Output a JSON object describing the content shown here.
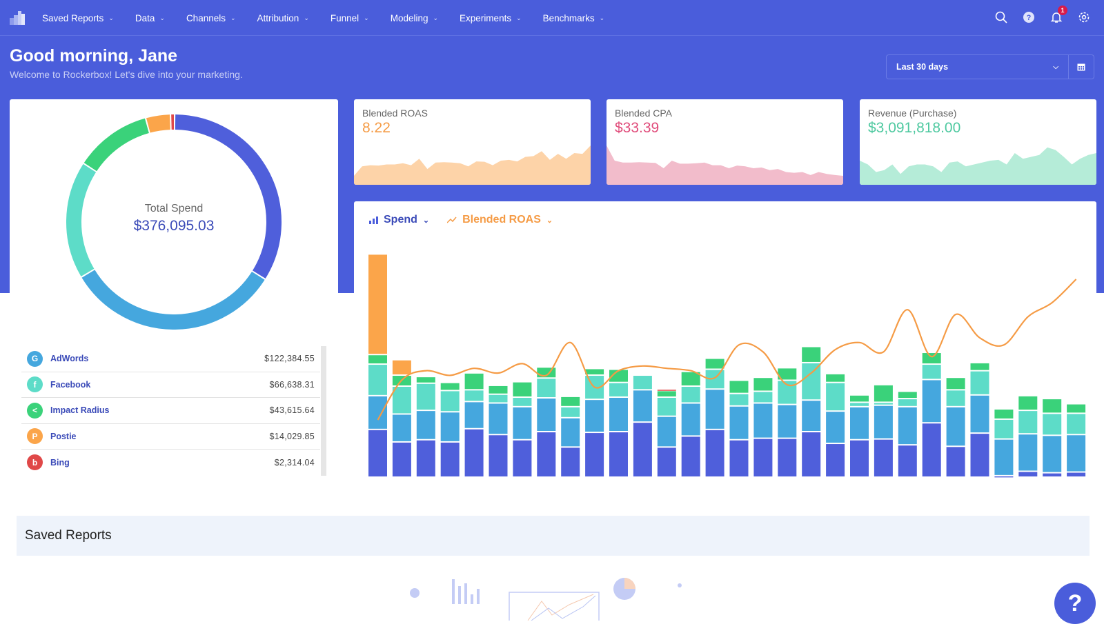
{
  "nav": {
    "items": [
      "Saved Reports",
      "Data",
      "Channels",
      "Attribution",
      "Funnel",
      "Modeling",
      "Experiments",
      "Benchmarks"
    ],
    "notification_count": "1",
    "icons": [
      "search-icon",
      "help-icon",
      "bell-icon",
      "gear-icon"
    ]
  },
  "header": {
    "greeting": "Good morning, Jane",
    "subtitle": "Welcome to Rockerbox! Let's dive into your marketing.",
    "date_range": "Last 30 days"
  },
  "donut": {
    "label": "Total Spend",
    "total": "$376,095.03",
    "slices": [
      {
        "value": 127112.64,
        "color": "#4f5fdb"
      },
      {
        "value": 122384.55,
        "color": "#45a7de"
      },
      {
        "value": 66638.31,
        "color": "#5ddcc8"
      },
      {
        "value": 43615.64,
        "color": "#3ad27a"
      },
      {
        "value": 14029.85,
        "color": "#fba54a"
      },
      {
        "value": 2314.04,
        "color": "#e04848"
      }
    ]
  },
  "channels": [
    {
      "name": "AdWords",
      "spend": "$122,384.55",
      "color": "#45a7de",
      "icon": "G"
    },
    {
      "name": "Facebook",
      "spend": "$66,638.31",
      "color": "#5ddcc8",
      "icon": "f"
    },
    {
      "name": "Impact Radius",
      "spend": "$43,615.64",
      "color": "#3ad27a",
      "icon": "<"
    },
    {
      "name": "Postie",
      "spend": "$14,029.85",
      "color": "#fba54a",
      "icon": "P"
    },
    {
      "name": "Bing",
      "spend": "$2,314.04",
      "color": "#e04848",
      "icon": "b"
    }
  ],
  "kpis": [
    {
      "label": "Blended ROAS",
      "value": "8.22",
      "color": "#f59b45",
      "fill": "#fdd3a8",
      "trend": [
        20,
        45,
        48,
        47,
        50,
        50,
        53,
        48,
        65,
        38,
        55,
        56,
        55,
        53,
        45,
        58,
        57,
        48,
        60,
        62,
        58,
        70,
        72,
        85,
        62,
        78,
        65,
        80,
        78,
        100
      ]
    },
    {
      "label": "Blended CPA",
      "value": "$33.39",
      "color": "#e04b7a",
      "fill": "#f2bccb",
      "trend": [
        100,
        60,
        55,
        55,
        56,
        55,
        54,
        40,
        60,
        52,
        52,
        53,
        55,
        48,
        48,
        40,
        47,
        45,
        40,
        42,
        35,
        38,
        30,
        28,
        30,
        22,
        30,
        25,
        22,
        20
      ]
    },
    {
      "label": "Revenue (Purchase)",
      "value": "$3,091,818.00",
      "color": "#4ec9a0",
      "fill": "#b5ecd8",
      "trend": [
        60,
        50,
        30,
        35,
        50,
        25,
        45,
        50,
        50,
        45,
        30,
        55,
        58,
        45,
        50,
        55,
        60,
        62,
        50,
        80,
        65,
        70,
        75,
        95,
        88,
        70,
        50,
        65,
        75,
        80
      ]
    }
  ],
  "chart_controls": {
    "bar_metric": "Spend",
    "line_metric": "Blended ROAS"
  },
  "chart_data": {
    "type": "bar",
    "stacked": true,
    "grid": false,
    "ylim": [
      0,
      31
    ],
    "y2lim": [
      5.7,
      11.7
    ],
    "series": [
      {
        "color": "#4f5fdb",
        "values": [
          6.5,
          4.8,
          5.1,
          4.8,
          6.6,
          5.8,
          5.1,
          6.2,
          4.1,
          6.1,
          6.2,
          7.5,
          4.1,
          5.6,
          6.5,
          5.1,
          5.3,
          5.3,
          6.2,
          4.6,
          5.1,
          5.2,
          4.4,
          7.4,
          4.2,
          6.0,
          0.2,
          0.8,
          0.6,
          0.7
        ]
      },
      {
        "name": "AdWords",
        "color": "#45a7de",
        "values": [
          4.6,
          3.8,
          4.0,
          4.1,
          3.7,
          4.3,
          4.5,
          4.6,
          4.0,
          4.5,
          4.7,
          4.4,
          4.2,
          4.5,
          5.5,
          4.6,
          4.8,
          4.6,
          4.3,
          4.4,
          4.5,
          4.6,
          5.2,
          5.9,
          5.4,
          5.2,
          5.0,
          5.1,
          5.1,
          5.1
        ]
      },
      {
        "name": "Facebook",
        "color": "#5ddcc8",
        "values": [
          4.3,
          3.8,
          3.7,
          2.9,
          1.6,
          1.2,
          1.3,
          2.7,
          1.5,
          3.3,
          2.0,
          2.0,
          2.6,
          2.3,
          2.7,
          1.7,
          1.6,
          3.3,
          5.1,
          3.9,
          0.6,
          0.4,
          1.1,
          2.1,
          2.3,
          3.3,
          2.7,
          3.2,
          3.0,
          2.9
        ]
      },
      {
        "name": "Impact Radius",
        "color": "#3ad27a",
        "values": [
          1.3,
          1.5,
          0.9,
          1.1,
          2.3,
          1.2,
          2.1,
          1.5,
          1.4,
          0.9,
          1.8,
          0,
          0.9,
          2.0,
          1.5,
          1.8,
          1.9,
          1.7,
          2.2,
          1.2,
          1.0,
          2.4,
          1.0,
          1.6,
          1.7,
          1.1,
          1.4,
          2.0,
          2.0,
          1.3
        ]
      },
      {
        "name": "Postie",
        "color": "#fba54a",
        "values": [
          13.7,
          2.1,
          0,
          0,
          0,
          0,
          0,
          0,
          0,
          0,
          0,
          0,
          0,
          0,
          0,
          0,
          0,
          0,
          0,
          0,
          0,
          0,
          0,
          0,
          0,
          0,
          0,
          0,
          0,
          0
        ]
      },
      {
        "name": "Bing",
        "color": "#e04848",
        "values": [
          0,
          0,
          0,
          0,
          0,
          0,
          0,
          0,
          0,
          0,
          0,
          0,
          0.2,
          0,
          0,
          0,
          0,
          0,
          0,
          0,
          0,
          0,
          0,
          0,
          0,
          0,
          0,
          0,
          0,
          0
        ]
      }
    ],
    "line": {
      "name": "Blended ROAS",
      "color": "#f59b45",
      "values": [
        5.7,
        7.4,
        7.8,
        7.6,
        7.9,
        7.7,
        8.1,
        7.6,
        9.0,
        7.1,
        7.8,
        8.0,
        7.9,
        7.8,
        7.5,
        8.9,
        8.6,
        7.2,
        7.7,
        8.7,
        9.0,
        8.6,
        10.4,
        8.4,
        10.2,
        9.2,
        8.9,
        10.1,
        10.7,
        11.7
      ]
    }
  },
  "saved_reports": {
    "title": "Saved Reports"
  },
  "help_button": "?"
}
